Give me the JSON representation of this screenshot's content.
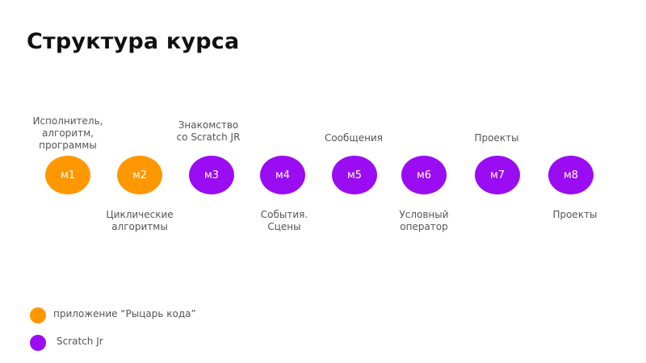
{
  "title": "Структура курса",
  "colors": {
    "app": "#ff9800",
    "scratch": "#9a0cf2"
  },
  "modules": [
    {
      "id": "м1",
      "label": "Исполнитель,\nалгоритм,\nпрограммы",
      "tool": "app"
    },
    {
      "id": "м2",
      "label": "Циклические\nалгоритмы",
      "tool": "app"
    },
    {
      "id": "м3",
      "label": "Знакомство\nсо Scratch JR",
      "tool": "scratch"
    },
    {
      "id": "м4",
      "label": "События.\nСцены",
      "tool": "scratch"
    },
    {
      "id": "м5",
      "label": "Сообщения",
      "tool": "scratch"
    },
    {
      "id": "м6",
      "label": "Условный\nоператор",
      "tool": "scratch"
    },
    {
      "id": "м7",
      "label": "Проекты",
      "tool": "scratch"
    },
    {
      "id": "м8",
      "label": "Проекты",
      "tool": "scratch"
    }
  ],
  "legend": [
    {
      "text": "приложение “Рыцарь кода”",
      "color_key": "app"
    },
    {
      "text": "Scratch Jr",
      "color_key": "scratch"
    }
  ]
}
